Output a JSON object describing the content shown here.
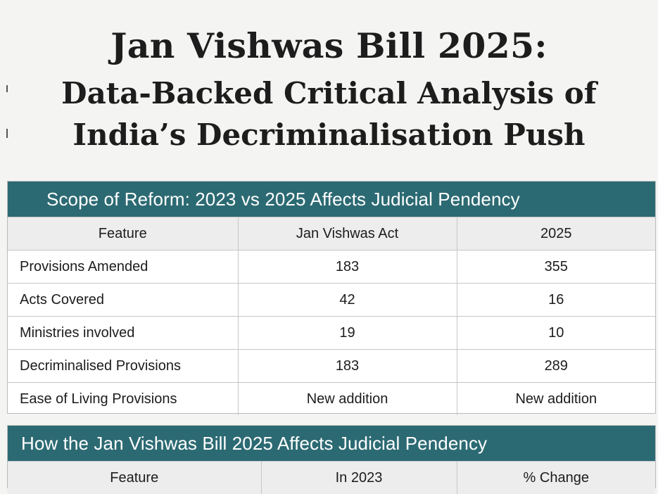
{
  "title": {
    "line1": "Jan Vishwas Bill 2025:",
    "line2": "Data-Backed Critical Analysis of",
    "line3": "India’s Decriminalisation Push"
  },
  "scope_table": {
    "heading": "Scope of Reform: 2023 vs 2025 Affects Judicial Pendency",
    "columns": [
      "Feature",
      "Jan Vishwas Act",
      "2025"
    ],
    "rows": [
      [
        "Provisions Amended",
        "183",
        "355"
      ],
      [
        "Acts Covered",
        "42",
        "16"
      ],
      [
        "Ministries involved",
        "19",
        "10"
      ],
      [
        "Decriminalised Provisions",
        "183",
        "289"
      ],
      [
        "Ease of Living Provisions",
        "New addition",
        "New addition"
      ]
    ]
  },
  "pendency_table": {
    "heading": "How the Jan Vishwas Bill 2025 Affects Judicial Pendency",
    "columns": [
      "Feature",
      "In 2023",
      "% Change"
    ]
  },
  "colors": {
    "header_band": "#2c6a73",
    "page_background": "#f4f4f2",
    "column_header_background": "#ecedec"
  }
}
